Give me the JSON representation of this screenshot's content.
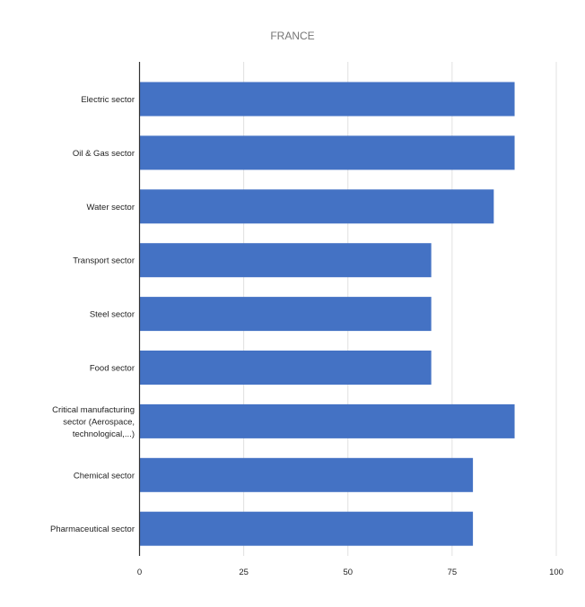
{
  "chart_data": {
    "type": "bar",
    "orientation": "horizontal",
    "title": "FRANCE",
    "categories": [
      "Electric sector",
      "Oil & Gas sector",
      "Water sector",
      "Transport sector",
      "Steel sector",
      "Food sector",
      "Critical manufacturing sector (Aerospace, technological,...)",
      "Chemical sector",
      "Pharmaceutical sector"
    ],
    "category_label_lines": [
      [
        "Electric sector"
      ],
      [
        "Oil & Gas sector"
      ],
      [
        "Water sector"
      ],
      [
        "Transport sector"
      ],
      [
        "Steel sector"
      ],
      [
        "Food sector"
      ],
      [
        "Critical manufacturing",
        "sector (Aerospace,",
        "technological,...)"
      ],
      [
        "Chemical sector"
      ],
      [
        "Pharmaceutical sector"
      ]
    ],
    "values": [
      90,
      90,
      85,
      70,
      70,
      70,
      90,
      80,
      80
    ],
    "xlim": [
      0,
      100
    ],
    "xticks": [
      "0",
      "25",
      "50",
      "75",
      "100"
    ],
    "xlabel": "",
    "ylabel": "",
    "grid": "vertical",
    "legend": "none",
    "colors": {
      "bar": "#4472c4",
      "grid": "#e0e0e0",
      "axis": "#333333",
      "title": "#757575",
      "text": "#222222"
    }
  }
}
